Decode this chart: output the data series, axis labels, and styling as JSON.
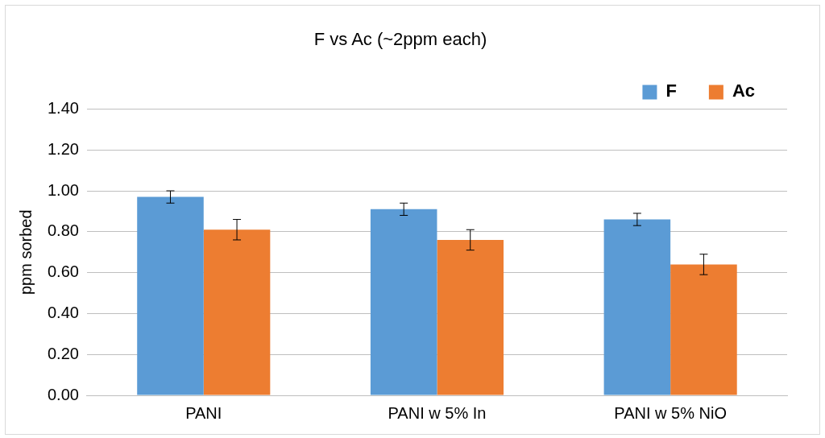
{
  "chart_data": {
    "type": "bar",
    "title": "F vs Ac (~2ppm each)",
    "ylabel": "ppm sorbed",
    "categories": [
      "PANI",
      "PANI w 5% In",
      "PANI w 5% NiO"
    ],
    "series": [
      {
        "name": "F",
        "color": "#5b9bd5",
        "values": [
          0.97,
          0.91,
          0.86
        ],
        "errors": [
          0.03,
          0.03,
          0.03
        ]
      },
      {
        "name": "Ac",
        "color": "#ed7d31",
        "values": [
          0.81,
          0.76,
          0.64
        ],
        "errors": [
          0.05,
          0.05,
          0.05
        ]
      }
    ],
    "ylim": [
      0,
      1.4
    ],
    "yticks": [
      {
        "value": 0,
        "label": "0.00"
      },
      {
        "value": 0.2,
        "label": "0.20"
      },
      {
        "value": 0.4,
        "label": "0.40"
      },
      {
        "value": 0.6,
        "label": "0.60"
      },
      {
        "value": 0.8,
        "label": "0.80"
      },
      {
        "value": 1.0,
        "label": "1.00"
      },
      {
        "value": 1.2,
        "label": "1.20"
      },
      {
        "value": 1.4,
        "label": "1.40"
      }
    ],
    "grid": "y",
    "legend": "top right"
  }
}
